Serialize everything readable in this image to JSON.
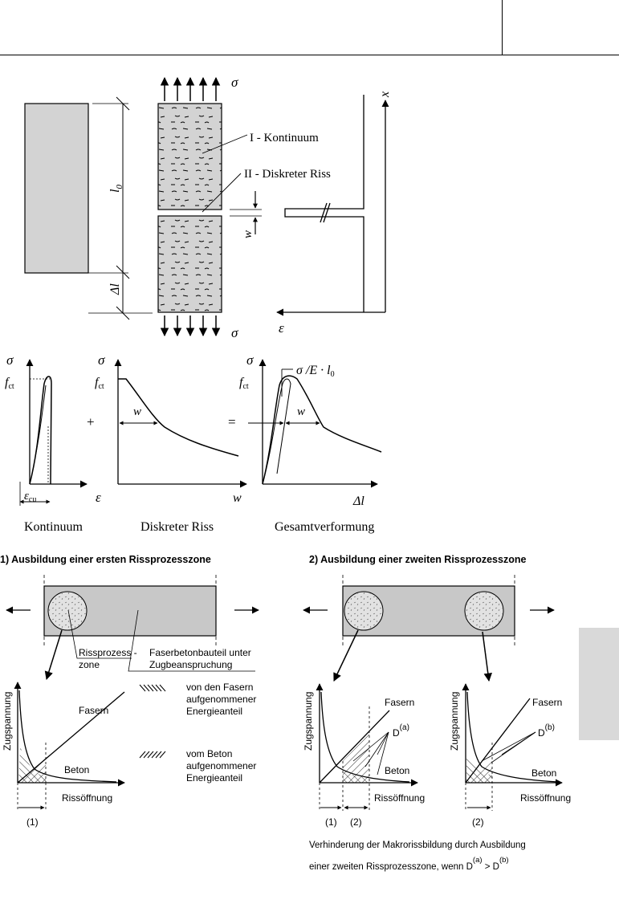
{
  "top": {
    "sigma": "σ",
    "x": "x",
    "epsilon": "ε",
    "l0": "l",
    "l0_sub": "0",
    "delta_l": "Δl",
    "w": "w",
    "label_continuum": "I - Kontinuum",
    "label_crack": "II - Diskreter Riss"
  },
  "mid": {
    "sigma": "σ",
    "fct": "f",
    "fct_sub": "ct",
    "eps_cu": "ε",
    "eps_cu_sub": "cu",
    "epsilon": "ε",
    "w": "w",
    "delta_l": "Δl",
    "plus": "+",
    "equals": "=",
    "formula": "σ /E · l",
    "formula_sub": "0",
    "caption_1": "Kontinuum",
    "caption_2": "Diskreter Riss",
    "caption_3": "Gesamtverformung"
  },
  "bottom": {
    "heading_1": "1) Ausbildung einer ersten Rissprozesszone",
    "heading_2": "2) Ausbildung einer zweiten Rissprozesszone",
    "rpz_label_1": "Rissprozess -",
    "rpz_label_2": "zone",
    "member_label_1": "Faserbetonbauteil unter",
    "member_label_2": "Zugbeanspruchung",
    "y_axis": "Zugspannung",
    "x_axis": "Rissöffnung",
    "fibers": "Fasern",
    "concrete": "Beton",
    "legend_fibers_1": "von den Fasern",
    "legend_fibers_2": "aufgenommener",
    "legend_fibers_3": "Energieanteil",
    "legend_concrete_1": "vom Beton",
    "legend_concrete_2": "aufgenommener",
    "legend_concrete_3": "Energieanteil",
    "mark_1": "(1)",
    "mark_2": "(2)",
    "D": "D",
    "Da_sup": "(a)",
    "Db_sup": "(b)",
    "note_line_1": "Verhinderung der Makrorissbildung durch Ausbildung",
    "note_line_2a": "einer zweiten  Rissprozesszone, wenn D",
    "note_gt": " > D"
  }
}
